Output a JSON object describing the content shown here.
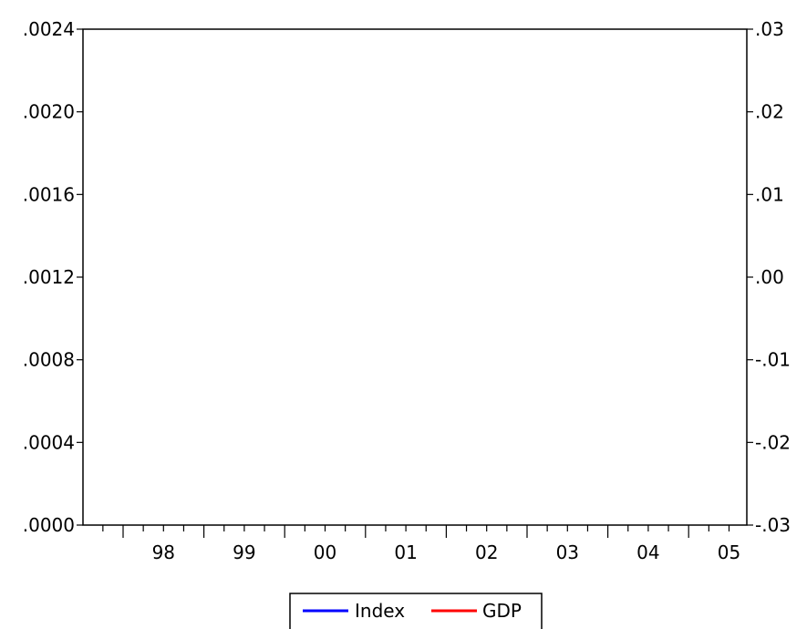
{
  "chart_data": {
    "type": "line",
    "title": "",
    "xlabel": "",
    "ylabel": "",
    "x_tick_labels": [
      "98",
      "99",
      "00",
      "01",
      "02",
      "03",
      "04",
      "05"
    ],
    "y_left": {
      "lim": [
        0.0,
        0.0024
      ],
      "tick_values": [
        0.0,
        0.0004,
        0.0008,
        0.0012,
        0.0016,
        0.002,
        0.0024
      ],
      "tick_labels": [
        ".0000",
        ".0004",
        ".0008",
        ".0012",
        ".0016",
        ".0020",
        ".0024"
      ]
    },
    "y_right": {
      "lim": [
        -0.03,
        0.03
      ],
      "tick_values": [
        -0.03,
        -0.02,
        -0.01,
        0.0,
        0.01,
        0.02,
        0.03
      ],
      "tick_labels": [
        "-.03",
        "-.02",
        "-.01",
        ".00",
        ".01",
        ".02",
        ".03"
      ]
    },
    "grid": false,
    "legend_position": "bottom-center",
    "series": [
      {
        "name": "Index",
        "color": "#0000ff",
        "values": []
      },
      {
        "name": "GDP",
        "color": "#ff0000",
        "values": []
      }
    ]
  }
}
